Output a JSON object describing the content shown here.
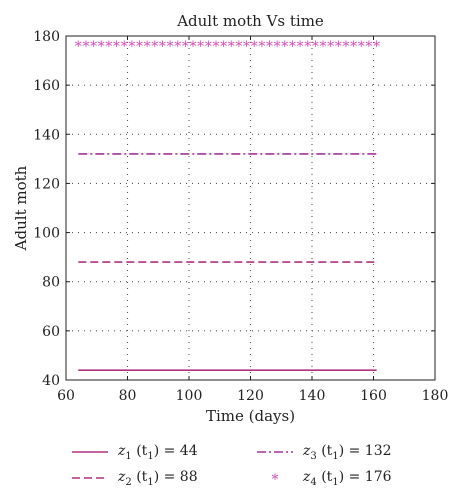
{
  "chart_data": {
    "type": "line",
    "title": "Adult moth Vs time",
    "xlabel": "Time (days)",
    "ylabel": "Adult moth",
    "xlim": [
      60,
      180
    ],
    "ylim": [
      40,
      180
    ],
    "xticks": [
      60,
      80,
      100,
      120,
      140,
      160,
      180
    ],
    "yticks": [
      40,
      60,
      80,
      100,
      120,
      140,
      160,
      180
    ],
    "grid": true,
    "legend_position": "bottom",
    "series": [
      {
        "name": "z1 (t1) = 44",
        "legend": {
          "var": "z",
          "sub": "1",
          "arg": "t",
          "argsub": "1",
          "value": "44"
        },
        "x": [
          64,
          161
        ],
        "y": [
          44,
          44
        ],
        "style": "solid",
        "color": "#b0307f"
      },
      {
        "name": "z2 (t1) = 88",
        "legend": {
          "var": "z",
          "sub": "2",
          "arg": "t",
          "argsub": "1",
          "value": "88"
        },
        "x": [
          64,
          161
        ],
        "y": [
          88,
          88
        ],
        "style": "dashed",
        "color": "#b0307f"
      },
      {
        "name": "z3 (t1) = 132",
        "legend": {
          "var": "z",
          "sub": "3",
          "arg": "t",
          "argsub": "1",
          "value": "132"
        },
        "x": [
          64,
          161
        ],
        "y": [
          132,
          132
        ],
        "style": "dashdot",
        "color": "#a4339b"
      },
      {
        "name": "z4 (t1) = 176",
        "legend": {
          "var": "z",
          "sub": "4",
          "arg": "t",
          "argsub": "1",
          "value": "176"
        },
        "x": [
          64,
          161
        ],
        "y": [
          176,
          176
        ],
        "style": "star",
        "color": "#d049b8"
      }
    ]
  }
}
